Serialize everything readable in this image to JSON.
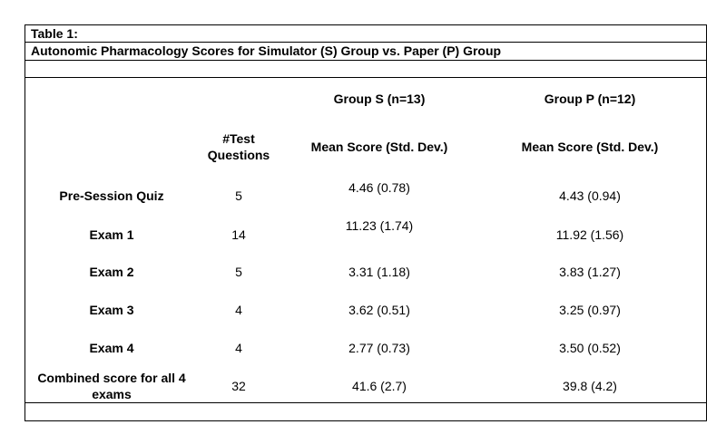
{
  "table": {
    "label": "Table 1:",
    "title": "Autonomic Pharmacology Scores for Simulator (S) Group vs. Paper (P) Group",
    "group_s": "Group S (n=13)",
    "group_p": "Group P (n=12)",
    "col_questions": "#Test Questions",
    "col_mean_s": "Mean Score (Std. Dev.)",
    "col_mean_p": "Mean Score (Std. Dev.)",
    "rows": [
      {
        "name": "Pre-Session Quiz",
        "questions": "5",
        "s": "4.46 (0.78)",
        "p": "4.43 (0.94)"
      },
      {
        "name": "Exam 1",
        "questions": "14",
        "s": "11.23 (1.74)",
        "p": "11.92 (1.56)"
      },
      {
        "name": "Exam 2",
        "questions": "5",
        "s": "3.31 (1.18)",
        "p": "3.83 (1.27)"
      },
      {
        "name": "Exam 3",
        "questions": "4",
        "s": "3.62 (0.51)",
        "p": "3.25 (0.97)"
      },
      {
        "name": "Exam 4",
        "questions": "4",
        "s": "2.77 (0.73)",
        "p": "3.50 (0.52)"
      },
      {
        "name": "Combined score for all 4 exams",
        "questions": "32",
        "s": "41.6 (2.7)",
        "p": "39.8 (4.2)"
      }
    ]
  }
}
